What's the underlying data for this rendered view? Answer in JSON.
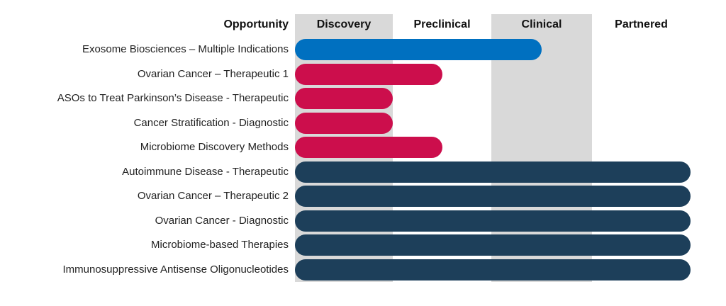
{
  "chart_data": {
    "type": "bar",
    "header_label": "Opportunity",
    "stages": [
      "Discovery",
      "Preclinical",
      "Clinical",
      "Partnered"
    ],
    "shaded_stages": [
      0,
      2
    ],
    "colors": {
      "blue": "#0070c0",
      "red": "#cc0e4c",
      "navy": "#1d3f5a",
      "band": "#d9d9d9"
    },
    "rows": [
      {
        "label": "Exosome Biosciences – Multiple Indications",
        "end": 2.5,
        "color": "blue"
      },
      {
        "label": "Ovarian Cancer – Therapeutic 1",
        "end": 1.5,
        "color": "red"
      },
      {
        "label": "ASOs to Treat Parkinson’s Disease - Therapeutic",
        "end": 1.0,
        "color": "red"
      },
      {
        "label": "Cancer Stratification - Diagnostic",
        "end": 1.0,
        "color": "red"
      },
      {
        "label": "Microbiome Discovery Methods",
        "end": 1.5,
        "color": "red"
      },
      {
        "label": "Autoimmune Disease - Therapeutic",
        "end": 4.0,
        "color": "navy"
      },
      {
        "label": "Ovarian Cancer – Therapeutic 2",
        "end": 4.0,
        "color": "navy"
      },
      {
        "label": "Ovarian Cancer - Diagnostic",
        "end": 4.0,
        "color": "navy"
      },
      {
        "label": "Microbiome-based Therapies",
        "end": 4.0,
        "color": "navy"
      },
      {
        "label": "Immunosuppressive Antisense Oligonucleotides",
        "end": 4.0,
        "color": "navy"
      }
    ]
  }
}
